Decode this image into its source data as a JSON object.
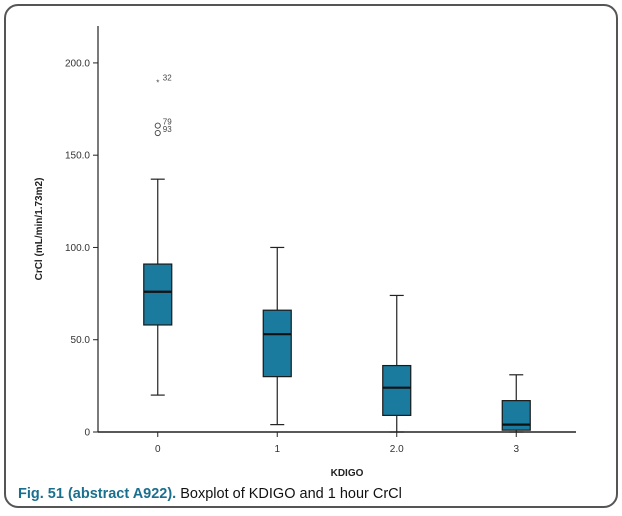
{
  "caption": {
    "label": "Fig. 51 (abstract A922).",
    "text": " Boxplot of KDIGO and 1 hour CrCl"
  },
  "colors": {
    "box_fill": "#1a7b9f",
    "axis": "#222222",
    "caption_label": "#1b6f8e"
  },
  "chart_data": {
    "type": "boxplot",
    "xlabel": "KDIGO",
    "ylabel": "CrCl (mL/min/1.73m2)",
    "ylim": [
      0,
      220
    ],
    "y_ticks": [
      0,
      50.0,
      100.0,
      150.0,
      200.0
    ],
    "y_tick_labels": [
      "0",
      "50.0",
      "100.0",
      "150.0",
      "200.0"
    ],
    "categories": [
      "0",
      "1",
      "2.0",
      "3"
    ],
    "boxes": [
      {
        "category": "0",
        "whisker_low": 20,
        "q1": 58,
        "median": 76,
        "q3": 91,
        "whisker_high": 137
      },
      {
        "category": "1",
        "whisker_low": 4,
        "q1": 30,
        "median": 53,
        "q3": 66,
        "whisker_high": 100
      },
      {
        "category": "2.0",
        "whisker_low": 0,
        "q1": 9,
        "median": 24,
        "q3": 36,
        "whisker_high": 74
      },
      {
        "category": "3",
        "whisker_low": 0,
        "q1": 1,
        "median": 4,
        "q3": 17,
        "whisker_high": 31
      }
    ],
    "outliers": [
      {
        "category": "0",
        "value": 190,
        "marker": "star",
        "label": "32"
      },
      {
        "category": "0",
        "value": 166,
        "marker": "circle",
        "label": "79"
      },
      {
        "category": "0",
        "value": 162,
        "marker": "circle",
        "label": "93"
      }
    ]
  }
}
